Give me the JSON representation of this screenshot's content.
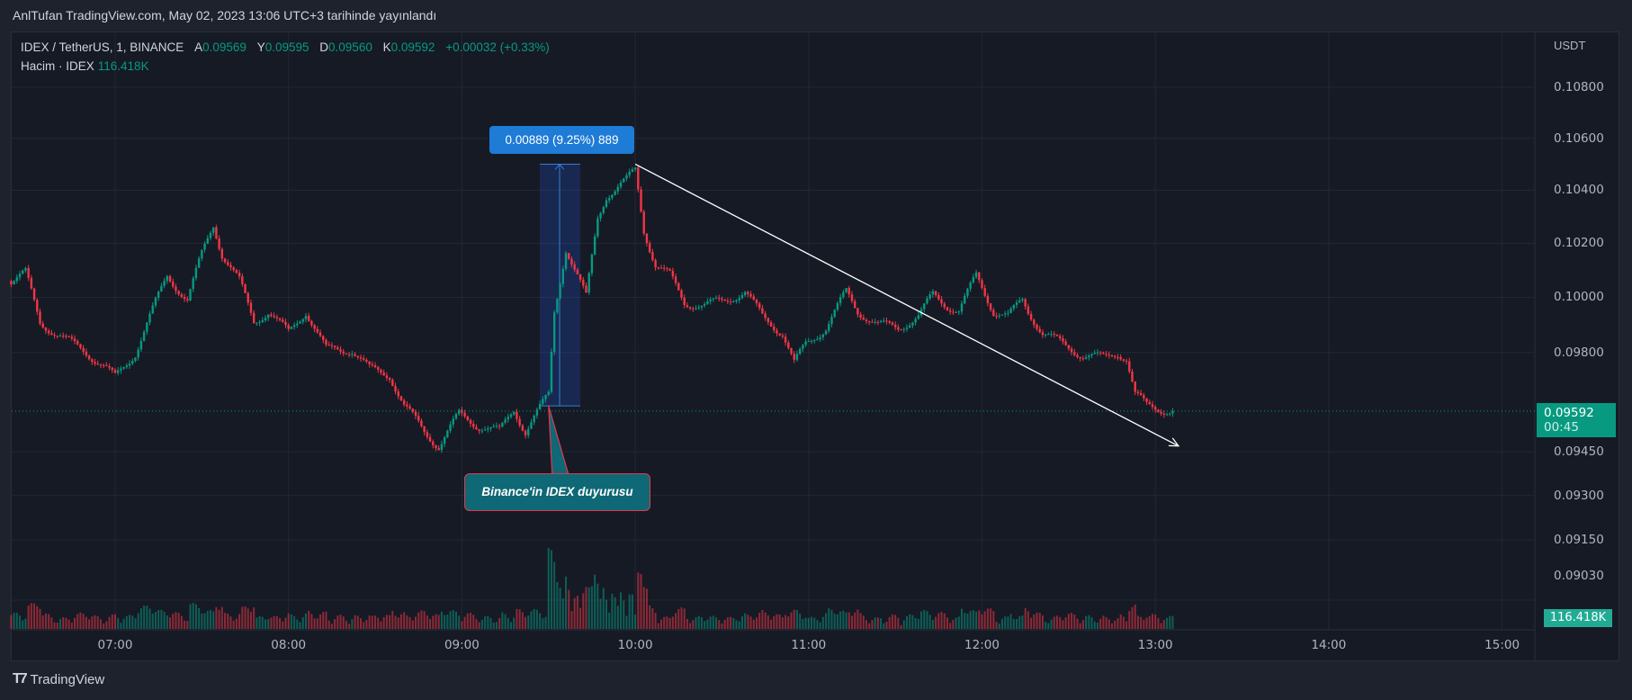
{
  "header": {
    "published": "AnlTufan TradingView.com, May 02, 2023 13:06 UTC+3 tarihinde yayınlandı"
  },
  "legend": {
    "symbol": "IDEX / TetherUS, 1, BINANCE",
    "open_label": "A",
    "open": "0.09569",
    "high_label": "Y",
    "high": "0.09595",
    "low_label": "D",
    "low": "0.09560",
    "close_label": "K",
    "close": "0.09592",
    "change": "+0.00032 (+0.33%)",
    "volume_label": "Hacim · IDEX",
    "volume": "116.418K"
  },
  "price_axis": {
    "unit": "USDT",
    "ticks": [
      "0.10800",
      "0.10600",
      "0.10400",
      "0.10200",
      "0.10000",
      "0.09800",
      "0.09450",
      "0.09300",
      "0.09150",
      "0.09030"
    ],
    "last_price": "0.09592",
    "countdown": "00:45",
    "volume_tag": "116.418K"
  },
  "time_axis": {
    "ticks": [
      "07:00",
      "08:00",
      "09:00",
      "10:00",
      "11:00",
      "12:00",
      "13:00",
      "14:00",
      "15:00"
    ]
  },
  "annotations": {
    "measure_label": "0.00889 (9.25%) 889",
    "measure_from": 0.0961,
    "measure_to": 0.105,
    "callout": "Binance'in IDEX duyurusu",
    "callout_time": "09:30",
    "trendline": {
      "from": [
        "10:00",
        0.105
      ],
      "to": [
        "13:08",
        0.0947
      ]
    }
  },
  "footer": {
    "brand": "TradingView"
  },
  "colors": {
    "up": "#089981",
    "down": "#f23645",
    "background": "#161a25",
    "measure": "#1e7bd6",
    "callout": "#0e6875"
  },
  "chart_data": {
    "type": "candlestick",
    "interval": "1m",
    "scale": "log",
    "ylim": [
      0.0903,
      0.108
    ],
    "xlim": [
      "06:24",
      "15:25"
    ],
    "grid": true,
    "close_path": [
      [
        "06:24",
        0.1006
      ],
      [
        "06:29",
        0.1009
      ],
      [
        "06:34",
        0.0991
      ],
      [
        "06:42",
        0.0985
      ],
      [
        "06:49",
        0.0981
      ],
      [
        "06:56",
        0.0975
      ],
      [
        "07:00",
        0.0971
      ],
      [
        "07:07",
        0.098
      ],
      [
        "07:14",
        0.0998
      ],
      [
        "07:18",
        0.1008
      ],
      [
        "07:25",
        0.0999
      ],
      [
        "07:30",
        0.1016
      ],
      [
        "07:34",
        0.1027
      ],
      [
        "07:37",
        0.1016
      ],
      [
        "07:43",
        0.1006
      ],
      [
        "07:48",
        0.0991
      ],
      [
        "07:53",
        0.0995
      ],
      [
        "08:00",
        0.0987
      ],
      [
        "08:06",
        0.0995
      ],
      [
        "08:13",
        0.0981
      ],
      [
        "08:22",
        0.0981
      ],
      [
        "08:28",
        0.0974
      ],
      [
        "08:35",
        0.0972
      ],
      [
        "08:40",
        0.0961
      ],
      [
        "08:47",
        0.0952
      ],
      [
        "08:52",
        0.0947
      ],
      [
        "08:59",
        0.0958
      ],
      [
        "09:06",
        0.0954
      ],
      [
        "09:13",
        0.0952
      ],
      [
        "09:18",
        0.096
      ],
      [
        "09:22",
        0.0952
      ],
      [
        "09:27",
        0.096
      ],
      [
        "09:30",
        0.0965
      ],
      [
        "09:32",
        0.0995
      ],
      [
        "09:36",
        0.1018
      ],
      [
        "09:39",
        0.101
      ],
      [
        "09:43",
        0.1
      ],
      [
        "09:47",
        0.103
      ],
      [
        "09:50",
        0.1038
      ],
      [
        "09:53",
        0.104
      ],
      [
        "09:57",
        0.1044
      ],
      [
        "10:00",
        0.1048
      ],
      [
        "10:03",
        0.1025
      ],
      [
        "10:07",
        0.1012
      ],
      [
        "10:12",
        0.1008
      ],
      [
        "10:17",
        0.0998
      ],
      [
        "10:24",
        0.0997
      ],
      [
        "10:31",
        0.0999
      ],
      [
        "10:38",
        0.1002
      ],
      [
        "10:44",
        0.0993
      ],
      [
        "10:51",
        0.0987
      ],
      [
        "10:55",
        0.0976
      ],
      [
        "10:59",
        0.0983
      ],
      [
        "11:06",
        0.0989
      ],
      [
        "11:13",
        0.1002
      ],
      [
        "11:17",
        0.0995
      ],
      [
        "11:24",
        0.099
      ],
      [
        "11:31",
        0.0989
      ],
      [
        "11:38",
        0.0993
      ],
      [
        "11:43",
        0.1001
      ],
      [
        "11:48",
        0.0997
      ],
      [
        "11:52",
        0.0995
      ],
      [
        "11:58",
        0.1008
      ],
      [
        "12:04",
        0.0995
      ],
      [
        "12:09",
        0.0993
      ],
      [
        "12:14",
        0.0999
      ],
      [
        "12:16",
        0.0995
      ],
      [
        "12:21",
        0.0987
      ],
      [
        "12:28",
        0.0983
      ],
      [
        "12:35",
        0.0979
      ],
      [
        "12:42",
        0.0978
      ],
      [
        "12:47",
        0.098
      ],
      [
        "12:50",
        0.0978
      ],
      [
        "12:53",
        0.0965
      ],
      [
        "12:57",
        0.0961
      ],
      [
        "13:06",
        0.09592
      ]
    ],
    "volume_spike_time": "09:30"
  }
}
